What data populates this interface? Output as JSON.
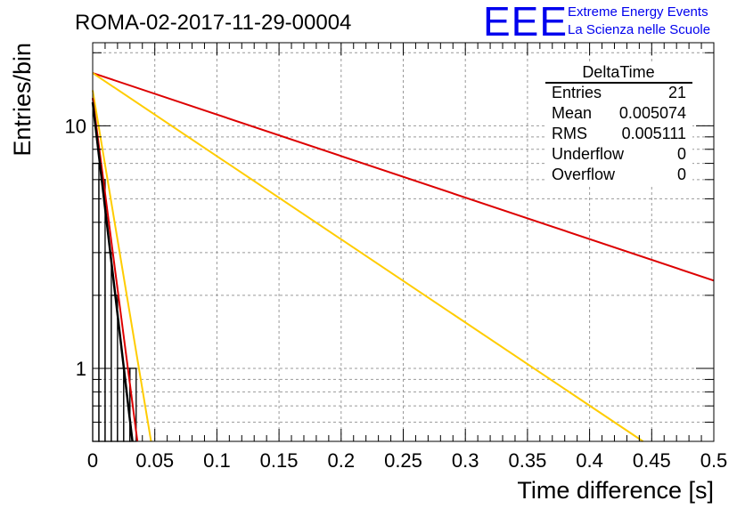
{
  "header": {
    "run_title": "ROMA-02-2017-11-29-00004",
    "logo_text": "EEE",
    "logo_line1": "Extreme Energy Events",
    "logo_line2": "La Scienza nelle Scuole"
  },
  "stats_box": {
    "title": "DeltaTime",
    "rows": [
      {
        "label": "Entries",
        "value": "21"
      },
      {
        "label": "Mean",
        "value": "0.005074"
      },
      {
        "label": "RMS",
        "value": "0.005111"
      },
      {
        "label": "Underflow",
        "value": "0"
      },
      {
        "label": "Overflow",
        "value": "0"
      }
    ]
  },
  "colors": {
    "histogram": "#000000",
    "fit_red": "#dd0000",
    "fit_yellow": "#ffcc00",
    "logo_blue": "#0000ee",
    "grid": "#999999"
  },
  "chart_data": {
    "type": "histogram",
    "xlabel": "Time difference [s]",
    "ylabel": "Entries/bin",
    "xlim": [
      0,
      0.5
    ],
    "ylim": [
      0.5,
      22
    ],
    "yscale": "log",
    "grid": true,
    "x_ticks": [
      0,
      0.05,
      0.1,
      0.15,
      0.2,
      0.25,
      0.3,
      0.35,
      0.4,
      0.45,
      0.5
    ],
    "x_tick_labels": [
      "0",
      "0.05",
      "0.1",
      "0.15",
      "0.2",
      "0.25",
      "0.3",
      "0.35",
      "0.4",
      "0.45",
      "0.5"
    ],
    "y_major_ticks": [
      1,
      10
    ],
    "y_tick_labels": [
      "1",
      "10"
    ],
    "histogram": {
      "bin_edges": [
        0,
        0.005,
        0.01,
        0.015,
        0.02,
        0.025,
        0.03,
        0.035
      ],
      "counts": [
        7,
        6,
        3,
        2,
        1,
        1,
        1
      ]
    },
    "curves": [
      {
        "color_key": "fit_red",
        "x": [
          0,
          0.5
        ],
        "y": [
          16.5,
          2.3
        ]
      },
      {
        "color_key": "fit_yellow",
        "x": [
          0,
          0.443
        ],
        "y": [
          16.5,
          0.5
        ]
      },
      {
        "color_key": "fit_yellow",
        "x": [
          0,
          0.047
        ],
        "y": [
          14,
          0.5
        ]
      },
      {
        "color_key": "fit_red",
        "x": [
          0,
          0.036
        ],
        "y": [
          13,
          0.5
        ]
      },
      {
        "color_key": "histogram",
        "x": [
          0,
          0.032
        ],
        "y": [
          12.5,
          0.5
        ]
      }
    ]
  }
}
